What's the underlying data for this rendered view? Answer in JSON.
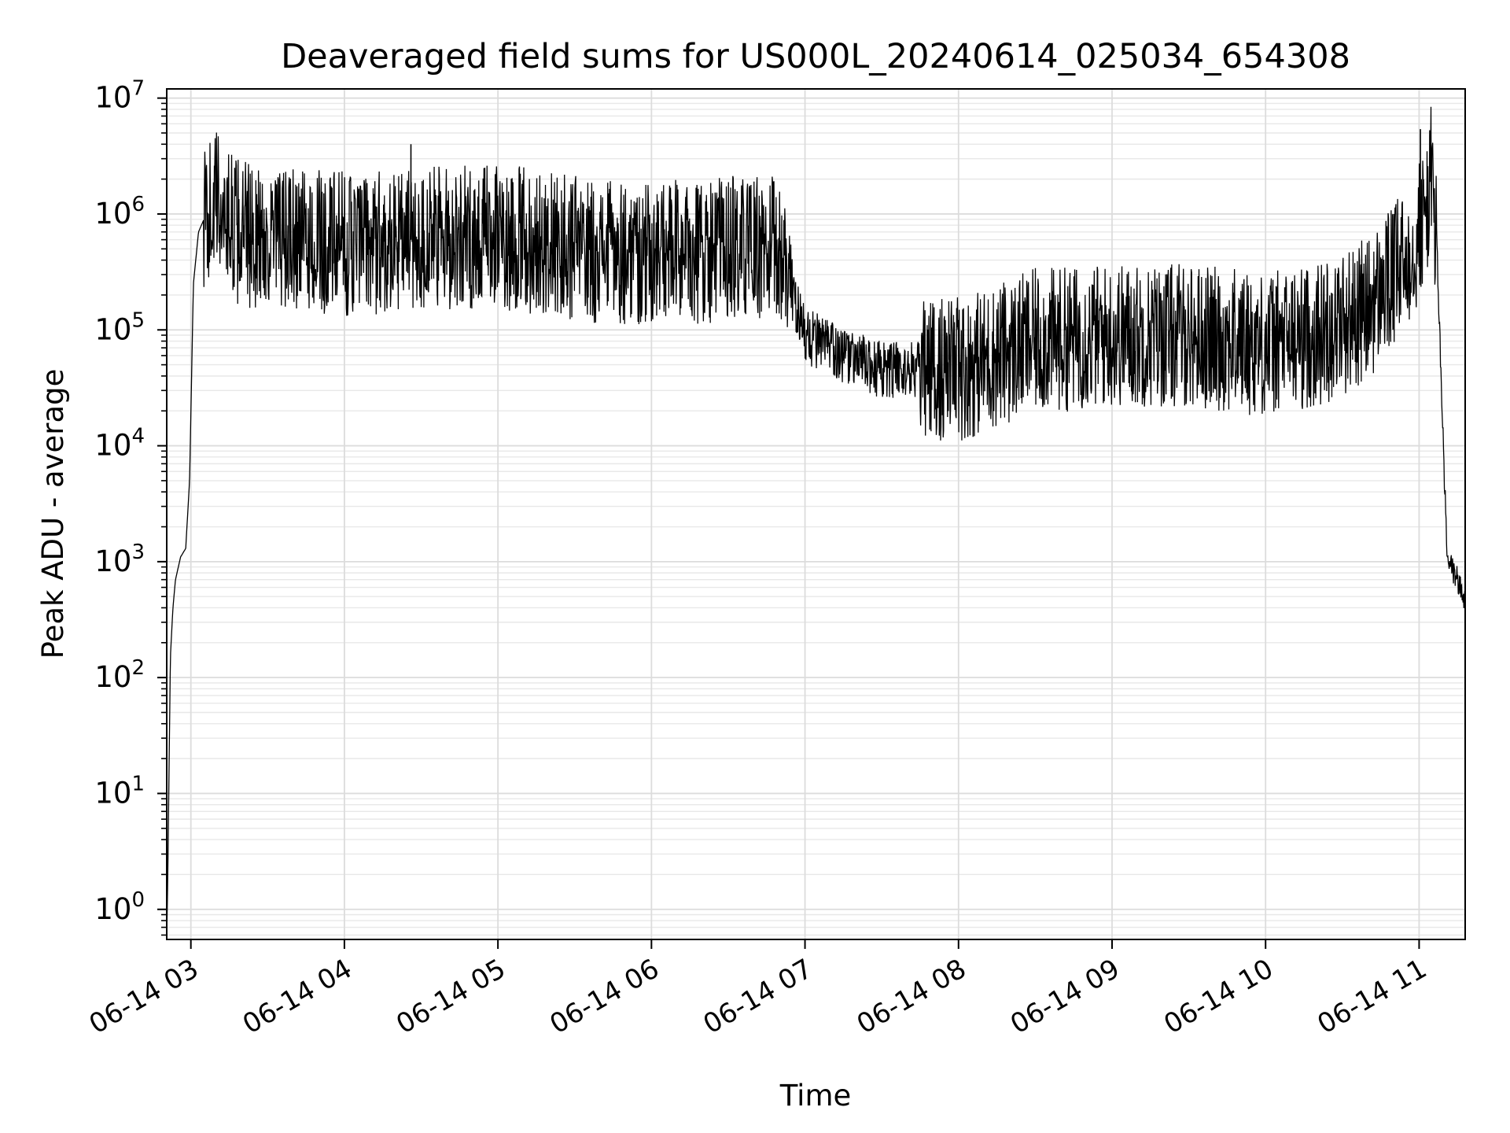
{
  "chart_data": {
    "type": "line",
    "title": "Deaveraged field sums for US000L_20240614_025034_654308",
    "xlabel": "Time",
    "ylabel": "Peak ADU - average",
    "yscale": "log",
    "ylim": [
      0.55,
      12000000
    ],
    "xlim": [
      "2024-06-14T02:50:34",
      "2024-06-14T11:18:00"
    ],
    "grid": {
      "major": true,
      "minor_y": true
    },
    "line_color": "#000000",
    "x_ticks": [
      {
        "label": "06-14 03",
        "time": "2024-06-14T03:00:00"
      },
      {
        "label": "06-14 04",
        "time": "2024-06-14T04:00:00"
      },
      {
        "label": "06-14 05",
        "time": "2024-06-14T05:00:00"
      },
      {
        "label": "06-14 06",
        "time": "2024-06-14T06:00:00"
      },
      {
        "label": "06-14 07",
        "time": "2024-06-14T07:00:00"
      },
      {
        "label": "06-14 08",
        "time": "2024-06-14T08:00:00"
      },
      {
        "label": "06-14 09",
        "time": "2024-06-14T09:00:00"
      },
      {
        "label": "06-14 10",
        "time": "2024-06-14T10:00:00"
      },
      {
        "label": "06-14 11",
        "time": "2024-06-14T11:00:00"
      }
    ],
    "y_ticks": [
      {
        "base": "10",
        "exp": "0",
        "value": 1
      },
      {
        "base": "10",
        "exp": "1",
        "value": 10
      },
      {
        "base": "10",
        "exp": "2",
        "value": 100
      },
      {
        "base": "10",
        "exp": "3",
        "value": 1000
      },
      {
        "base": "10",
        "exp": "4",
        "value": 10000
      },
      {
        "base": "10",
        "exp": "5",
        "value": 100000
      },
      {
        "base": "10",
        "exp": "6",
        "value": 1000000
      },
      {
        "base": "10",
        "exp": "7",
        "value": 10000000
      }
    ],
    "series": [
      {
        "x": [
          "2024-06-14T02:50:34",
          "2024-06-14T02:51:00",
          "2024-06-14T02:52:00",
          "2024-06-14T02:53:00",
          "2024-06-14T02:54:00",
          "2024-06-14T02:56:00",
          "2024-06-14T02:58:00",
          "2024-06-14T02:59:30",
          "2024-06-14T03:01:00",
          "2024-06-14T03:03:00",
          "2024-06-14T03:06:00",
          "2024-06-14T03:10:00",
          "2024-06-14T03:14:00",
          "2024-06-14T03:18:00",
          "2024-06-14T03:30:00",
          "2024-06-14T04:00:00",
          "2024-06-14T04:30:00",
          "2024-06-14T05:00:00",
          "2024-06-14T05:30:00",
          "2024-06-14T06:00:00",
          "2024-06-14T06:30:00",
          "2024-06-14T06:50:00",
          "2024-06-14T07:00:00",
          "2024-06-14T07:15:00",
          "2024-06-14T07:30:00",
          "2024-06-14T08:00:00",
          "2024-06-14T08:30:00",
          "2024-06-14T09:00:00",
          "2024-06-14T09:30:00",
          "2024-06-14T10:00:00",
          "2024-06-14T10:20:00",
          "2024-06-14T10:40:00",
          "2024-06-14T10:55:00",
          "2024-06-14T11:02:00",
          "2024-06-14T11:05:00",
          "2024-06-14T11:07:00",
          "2024-06-14T11:09:00",
          "2024-06-14T11:11:00",
          "2024-06-14T11:14:00",
          "2024-06-14T11:18:00"
        ],
        "y": [
          0.55,
          2,
          150,
          400,
          700,
          1100,
          1300,
          5000,
          250000,
          700000,
          1000000,
          1300000,
          1000000,
          700000,
          600000,
          550000,
          600000,
          650000,
          500000,
          450000,
          500000,
          500000,
          90000,
          60000,
          45000,
          45000,
          80000,
          90000,
          90000,
          75000,
          90000,
          150000,
          400000,
          900000,
          2200000,
          500000,
          20000,
          1000,
          800,
          450
        ]
      }
    ],
    "annotations": {
      "spike_peaks": [
        {
          "time": "2024-06-14T04:26:00",
          "value": 4000000
        },
        {
          "time": "2024-06-14T11:00:30",
          "value": 5400000
        }
      ]
    }
  }
}
